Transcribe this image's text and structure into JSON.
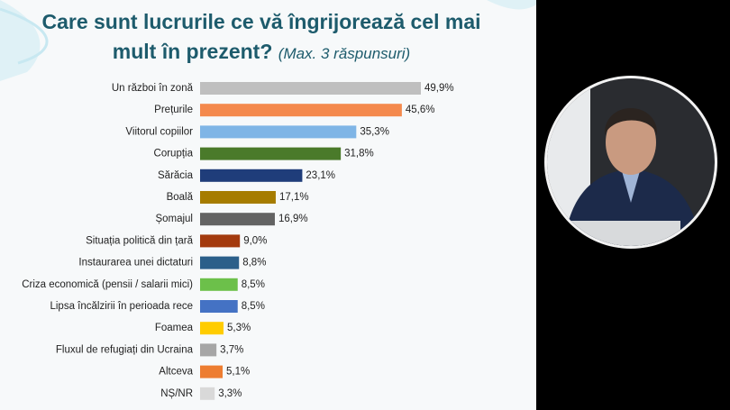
{
  "chart_data": {
    "type": "bar",
    "orientation": "horizontal",
    "title": "Care sunt lucrurile ce vă îngrijorează cel mai mult în prezent?",
    "subtitle": "(Max. 3 răspunsuri)",
    "categories": [
      "Un război în zonă",
      "Prețurile",
      "Viitorul copiilor",
      "Corupția",
      "Sărăcia",
      "Boală",
      "Șomajul",
      "Situația politică din țară",
      "Instaurarea unei dictaturi",
      "Criza economică (pensii / salarii mici)",
      "Lipsa încălzirii în perioada rece",
      "Foamea",
      "Fluxul de refugiați din Ucraina",
      "Altceva",
      "NȘ/NR"
    ],
    "values": [
      49.9,
      45.6,
      35.3,
      31.8,
      23.1,
      17.1,
      16.9,
      9.0,
      8.8,
      8.5,
      8.5,
      5.3,
      3.7,
      5.1,
      3.3
    ],
    "value_labels": [
      "49,9%",
      "45,6%",
      "35,3%",
      "31,8%",
      "23,1%",
      "17,1%",
      "16,9%",
      "9,0%",
      "8,8%",
      "8,5%",
      "8,5%",
      "5,3%",
      "3,7%",
      "5,1%",
      "3,3%"
    ],
    "colors": [
      "#bfbfbf",
      "#f4894d",
      "#7fb5e6",
      "#4a7a2a",
      "#1f3d7a",
      "#a67c00",
      "#636363",
      "#a33a0e",
      "#2b5f8a",
      "#6cc04a",
      "#4472c4",
      "#ffcc00",
      "#a6a6a6",
      "#ed7d31",
      "#d9d9d9"
    ]
  }
}
